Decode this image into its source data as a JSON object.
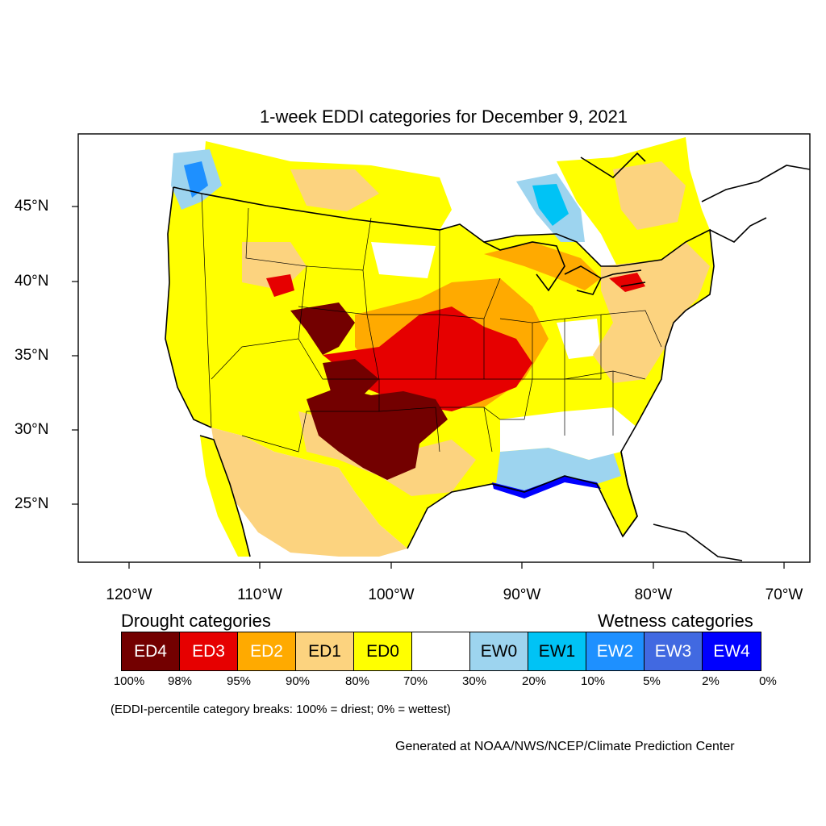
{
  "title": "1-week EDDI categories for December 9, 2021",
  "map": {
    "lat_labels": [
      "45°N",
      "40°N",
      "35°N",
      "30°N",
      "25°N"
    ],
    "lon_labels": [
      "120°W",
      "110°W",
      "100°W",
      "90°W",
      "80°W",
      "70°W"
    ]
  },
  "legend": {
    "drought_heading": "Drought categories",
    "wetness_heading": "Wetness categories",
    "categories": [
      {
        "label": "ED4",
        "color": "#730000",
        "text_color": "#ffffff"
      },
      {
        "label": "ED3",
        "color": "#e60000",
        "text_color": "#ffffff"
      },
      {
        "label": "ED2",
        "color": "#ffaa00",
        "text_color": "#ffffff"
      },
      {
        "label": "ED1",
        "color": "#fcd37f",
        "text_color": "#000000"
      },
      {
        "label": "ED0",
        "color": "#ffff00",
        "text_color": "#000000"
      },
      {
        "label": "",
        "color": "#ffffff",
        "text_color": "#000000"
      },
      {
        "label": "EW0",
        "color": "#9dd4ef",
        "text_color": "#000000"
      },
      {
        "label": "EW1",
        "color": "#00c3f5",
        "text_color": "#000000"
      },
      {
        "label": "EW2",
        "color": "#1e90ff",
        "text_color": "#ffffff"
      },
      {
        "label": "EW3",
        "color": "#4169e1",
        "text_color": "#ffffff"
      },
      {
        "label": "EW4",
        "color": "#0000ff",
        "text_color": "#ffffff"
      }
    ],
    "breaks": [
      "100%",
      "98%",
      "95%",
      "90%",
      "80%",
      "70%",
      "30%",
      "20%",
      "10%",
      "5%",
      "2%",
      "0%"
    ],
    "note": "(EDDI-percentile category breaks: 100% = driest; 0% = wettest)"
  },
  "credit": "Generated at NOAA/NWS/NCEP/Climate Prediction Center"
}
